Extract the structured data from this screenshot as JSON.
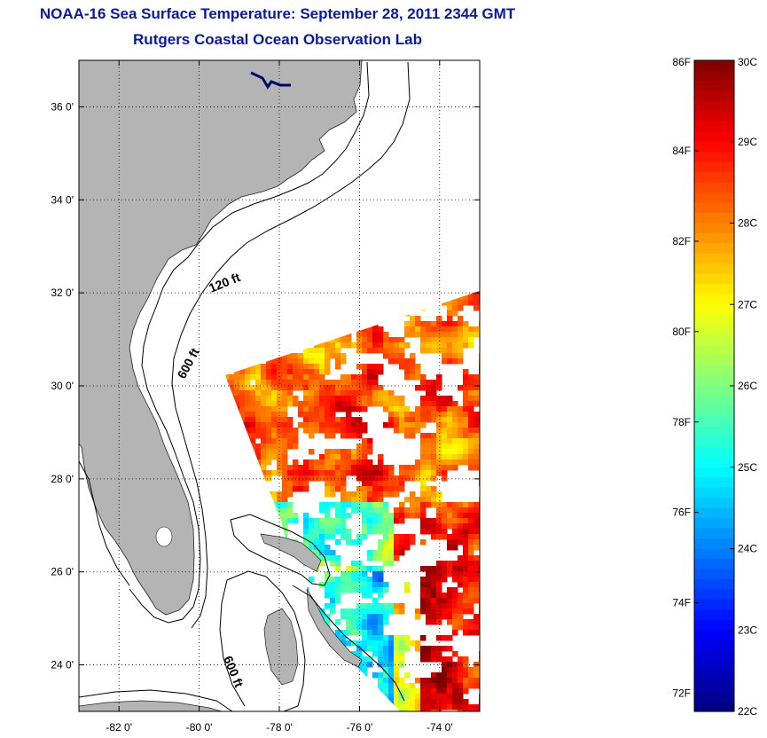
{
  "header": {
    "title": "NOAA-16 Sea Surface Temperature:  September 28, 2011 2344 GMT",
    "subtitle": "Rutgers Coastal Ocean Observation Lab"
  },
  "map": {
    "lon_range": [
      -83,
      -73
    ],
    "lat_range": [
      23,
      37
    ],
    "lon_ticks": [
      {
        "value": -82,
        "label": "-82 0'"
      },
      {
        "value": -80,
        "label": "-80 0'"
      },
      {
        "value": -78,
        "label": "-78 0'"
      },
      {
        "value": -76,
        "label": "-76 0'"
      },
      {
        "value": -74,
        "label": "-74 0'"
      }
    ],
    "lat_ticks": [
      {
        "value": 36,
        "label": "36 0'"
      },
      {
        "value": 34,
        "label": "34 0'"
      },
      {
        "value": 32,
        "label": "32 0'"
      },
      {
        "value": 30,
        "label": "30 0'"
      },
      {
        "value": 28,
        "label": "28 0'"
      },
      {
        "value": 26,
        "label": "26 0'"
      },
      {
        "value": 24,
        "label": "24 0'"
      }
    ],
    "contour_labels": [
      "120 ft",
      "600 ft",
      "600 ft"
    ],
    "land_color": "#b4b4b4",
    "grid": "dotted"
  },
  "colorbar": {
    "fahrenheit_labels": [
      "86F",
      "84F",
      "82F",
      "80F",
      "78F",
      "76F",
      "74F",
      "72F"
    ],
    "celsius_labels": [
      "30C",
      "29C",
      "28C",
      "27C",
      "26C",
      "25C",
      "24C",
      "23C",
      "22C"
    ],
    "range_c": [
      22,
      30
    ],
    "colormap": "jet"
  }
}
